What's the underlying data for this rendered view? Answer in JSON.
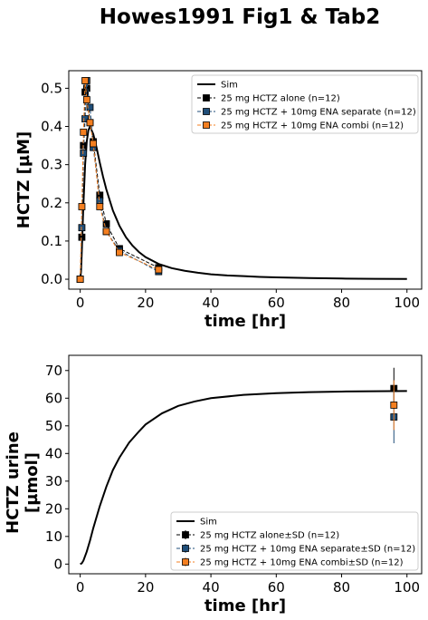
{
  "figure": {
    "title": "Howes1991 Fig1 & Tab2",
    "colors": {
      "sim": "#000000",
      "alone": "#000000",
      "separate": "#1f4e79",
      "combi": "#f47f20",
      "marker_edge": "#000000"
    }
  },
  "chart_data": [
    {
      "type": "line",
      "xlabel": "time [hr]",
      "ylabel": "HCTZ [µM]",
      "xlim": [
        -3.5,
        104.5
      ],
      "ylim": [
        -0.026,
        0.546
      ],
      "xticks": [
        0,
        20,
        40,
        60,
        80,
        100
      ],
      "yticks": [
        0.0,
        0.1,
        0.2,
        0.3,
        0.4,
        0.5
      ],
      "xtick_labels": [
        "0",
        "20",
        "40",
        "60",
        "80",
        "100"
      ],
      "ytick_labels": [
        "0.0",
        "0.1",
        "0.2",
        "0.3",
        "0.4",
        "0.5"
      ],
      "legend_position": "upper right",
      "grid": false,
      "sim": {
        "name": "Sim",
        "x": [
          0,
          0.25,
          0.5,
          0.75,
          1,
          1.5,
          2,
          2.5,
          3,
          4,
          5,
          6,
          7,
          8,
          10,
          12,
          14,
          16,
          18,
          20,
          24,
          28,
          32,
          36,
          40,
          45,
          50,
          55,
          60,
          70,
          80,
          90,
          100
        ],
        "y": [
          0,
          0.02,
          0.075,
          0.14,
          0.2,
          0.3,
          0.36,
          0.39,
          0.4,
          0.38,
          0.345,
          0.305,
          0.268,
          0.235,
          0.18,
          0.14,
          0.11,
          0.088,
          0.071,
          0.058,
          0.04,
          0.029,
          0.022,
          0.017,
          0.013,
          0.01,
          0.008,
          0.006,
          0.0048,
          0.003,
          0.0018,
          0.0011,
          0.0007
        ]
      },
      "series": [
        {
          "name": "25 mg HCTZ alone (n=12)",
          "color": "#000000",
          "x": [
            0,
            0.5,
            1,
            1.5,
            2,
            3,
            4,
            6,
            8,
            12,
            24
          ],
          "y": [
            0,
            0.11,
            0.35,
            0.49,
            0.5,
            0.41,
            0.36,
            0.22,
            0.145,
            0.08,
            0.03
          ]
        },
        {
          "name": "25 mg HCTZ + 10mg ENA separate (n=12)",
          "color": "#1f4e79",
          "x": [
            0,
            0.5,
            1,
            1.5,
            2,
            3,
            4,
            6,
            8,
            12,
            24
          ],
          "y": [
            0,
            0.135,
            0.33,
            0.42,
            0.52,
            0.45,
            0.345,
            0.205,
            0.125,
            0.075,
            0.02
          ]
        },
        {
          "name": "25 mg HCTZ + 10mg ENA combi (n=12)",
          "color": "#f47f20",
          "x": [
            0,
            0.5,
            1,
            1.5,
            2,
            3,
            4,
            6,
            8,
            12,
            24
          ],
          "y": [
            0,
            0.19,
            0.385,
            0.52,
            0.47,
            0.41,
            0.355,
            0.19,
            0.125,
            0.07,
            0.025
          ]
        }
      ]
    },
    {
      "type": "line",
      "xlabel": "time [hr]",
      "ylabel_lines": [
        "HCTZ urine",
        "[µmol]"
      ],
      "xlim": [
        -3.5,
        104.5
      ],
      "ylim": [
        -3.5,
        75.5
      ],
      "xticks": [
        0,
        20,
        40,
        60,
        80,
        100
      ],
      "yticks": [
        0,
        10,
        20,
        30,
        40,
        50,
        60,
        70
      ],
      "xtick_labels": [
        "0",
        "20",
        "40",
        "60",
        "80",
        "100"
      ],
      "ytick_labels": [
        "0",
        "10",
        "20",
        "30",
        "40",
        "50",
        "60",
        "70"
      ],
      "legend_position": "lower right",
      "grid": false,
      "sim": {
        "name": "Sim",
        "x": [
          0,
          0.5,
          1,
          2,
          3,
          4,
          6,
          8,
          10,
          12,
          15,
          18,
          20,
          25,
          30,
          35,
          40,
          50,
          60,
          70,
          80,
          90,
          100
        ],
        "y": [
          0,
          0.3,
          1.3,
          4.5,
          8.5,
          13,
          21,
          28,
          34,
          38.5,
          44,
          48,
          50.5,
          54.5,
          57.2,
          58.8,
          60,
          61.2,
          61.8,
          62.2,
          62.4,
          62.5,
          62.6
        ]
      },
      "series": [
        {
          "name": "25 mg HCTZ alone±SD (n=12)",
          "color": "#000000",
          "x": [
            96
          ],
          "y": [
            63.5
          ],
          "sd": [
            7.5
          ]
        },
        {
          "name": "25 mg HCTZ + 10mg ENA separate±SD (n=12)",
          "color": "#1f4e79",
          "x": [
            96
          ],
          "y": [
            53.2
          ],
          "sd": [
            9.5
          ]
        },
        {
          "name": "25 mg HCTZ + 10mg ENA combi±SD (n=12)",
          "color": "#f47f20",
          "x": [
            96
          ],
          "y": [
            57.5
          ],
          "sd": [
            9
          ]
        }
      ]
    }
  ]
}
